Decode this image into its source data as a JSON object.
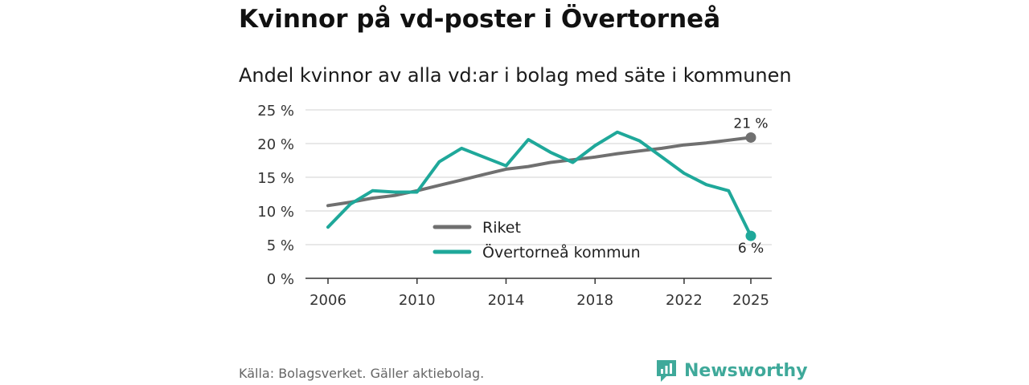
{
  "title": "Kvinnor på vd-poster i Övertorneå",
  "subtitle": "Andel kvinnor av alla vd:ar i bolag med säte i kommunen",
  "source": "Källa: Bolagsverket. Gäller aktiebolag.",
  "brand": "Newsworthy",
  "colors": {
    "riket": "#707070",
    "kommun": "#1fa89a",
    "grid": "#d9d9d9",
    "brand": "#3fa99a"
  },
  "chart_data": {
    "type": "line",
    "x": [
      2006,
      2007,
      2008,
      2009,
      2010,
      2011,
      2012,
      2013,
      2014,
      2015,
      2016,
      2017,
      2018,
      2019,
      2020,
      2021,
      2022,
      2023,
      2024,
      2025
    ],
    "series": [
      {
        "name": "Riket",
        "values": [
          10.8,
          11.3,
          11.9,
          12.3,
          13.0,
          13.8,
          14.6,
          15.4,
          16.2,
          16.6,
          17.2,
          17.6,
          18.0,
          18.5,
          18.9,
          19.3,
          19.8,
          20.1,
          20.5,
          20.9
        ]
      },
      {
        "name": "Övertorneå kommun",
        "values": [
          7.6,
          11.0,
          13.0,
          12.8,
          12.8,
          17.3,
          19.3,
          18.0,
          16.7,
          20.6,
          18.7,
          17.2,
          19.7,
          21.7,
          20.4,
          18.0,
          15.6,
          13.9,
          13.0,
          6.3
        ]
      }
    ],
    "end_labels": [
      "21 %",
      "6 %"
    ],
    "y_ticks": [
      "0 %",
      "5 %",
      "10 %",
      "15 %",
      "20 %",
      "25 %"
    ],
    "y_tick_values": [
      0,
      5,
      10,
      15,
      20,
      25
    ],
    "x_ticks": [
      "2006",
      "2010",
      "2014",
      "2018",
      "2022",
      "2025"
    ],
    "x_tick_values": [
      2006,
      2010,
      2014,
      2018,
      2022,
      2025
    ],
    "ylim": [
      0,
      25
    ],
    "legend": [
      "Riket",
      "Övertorneå kommun"
    ],
    "legend_position": "center"
  }
}
